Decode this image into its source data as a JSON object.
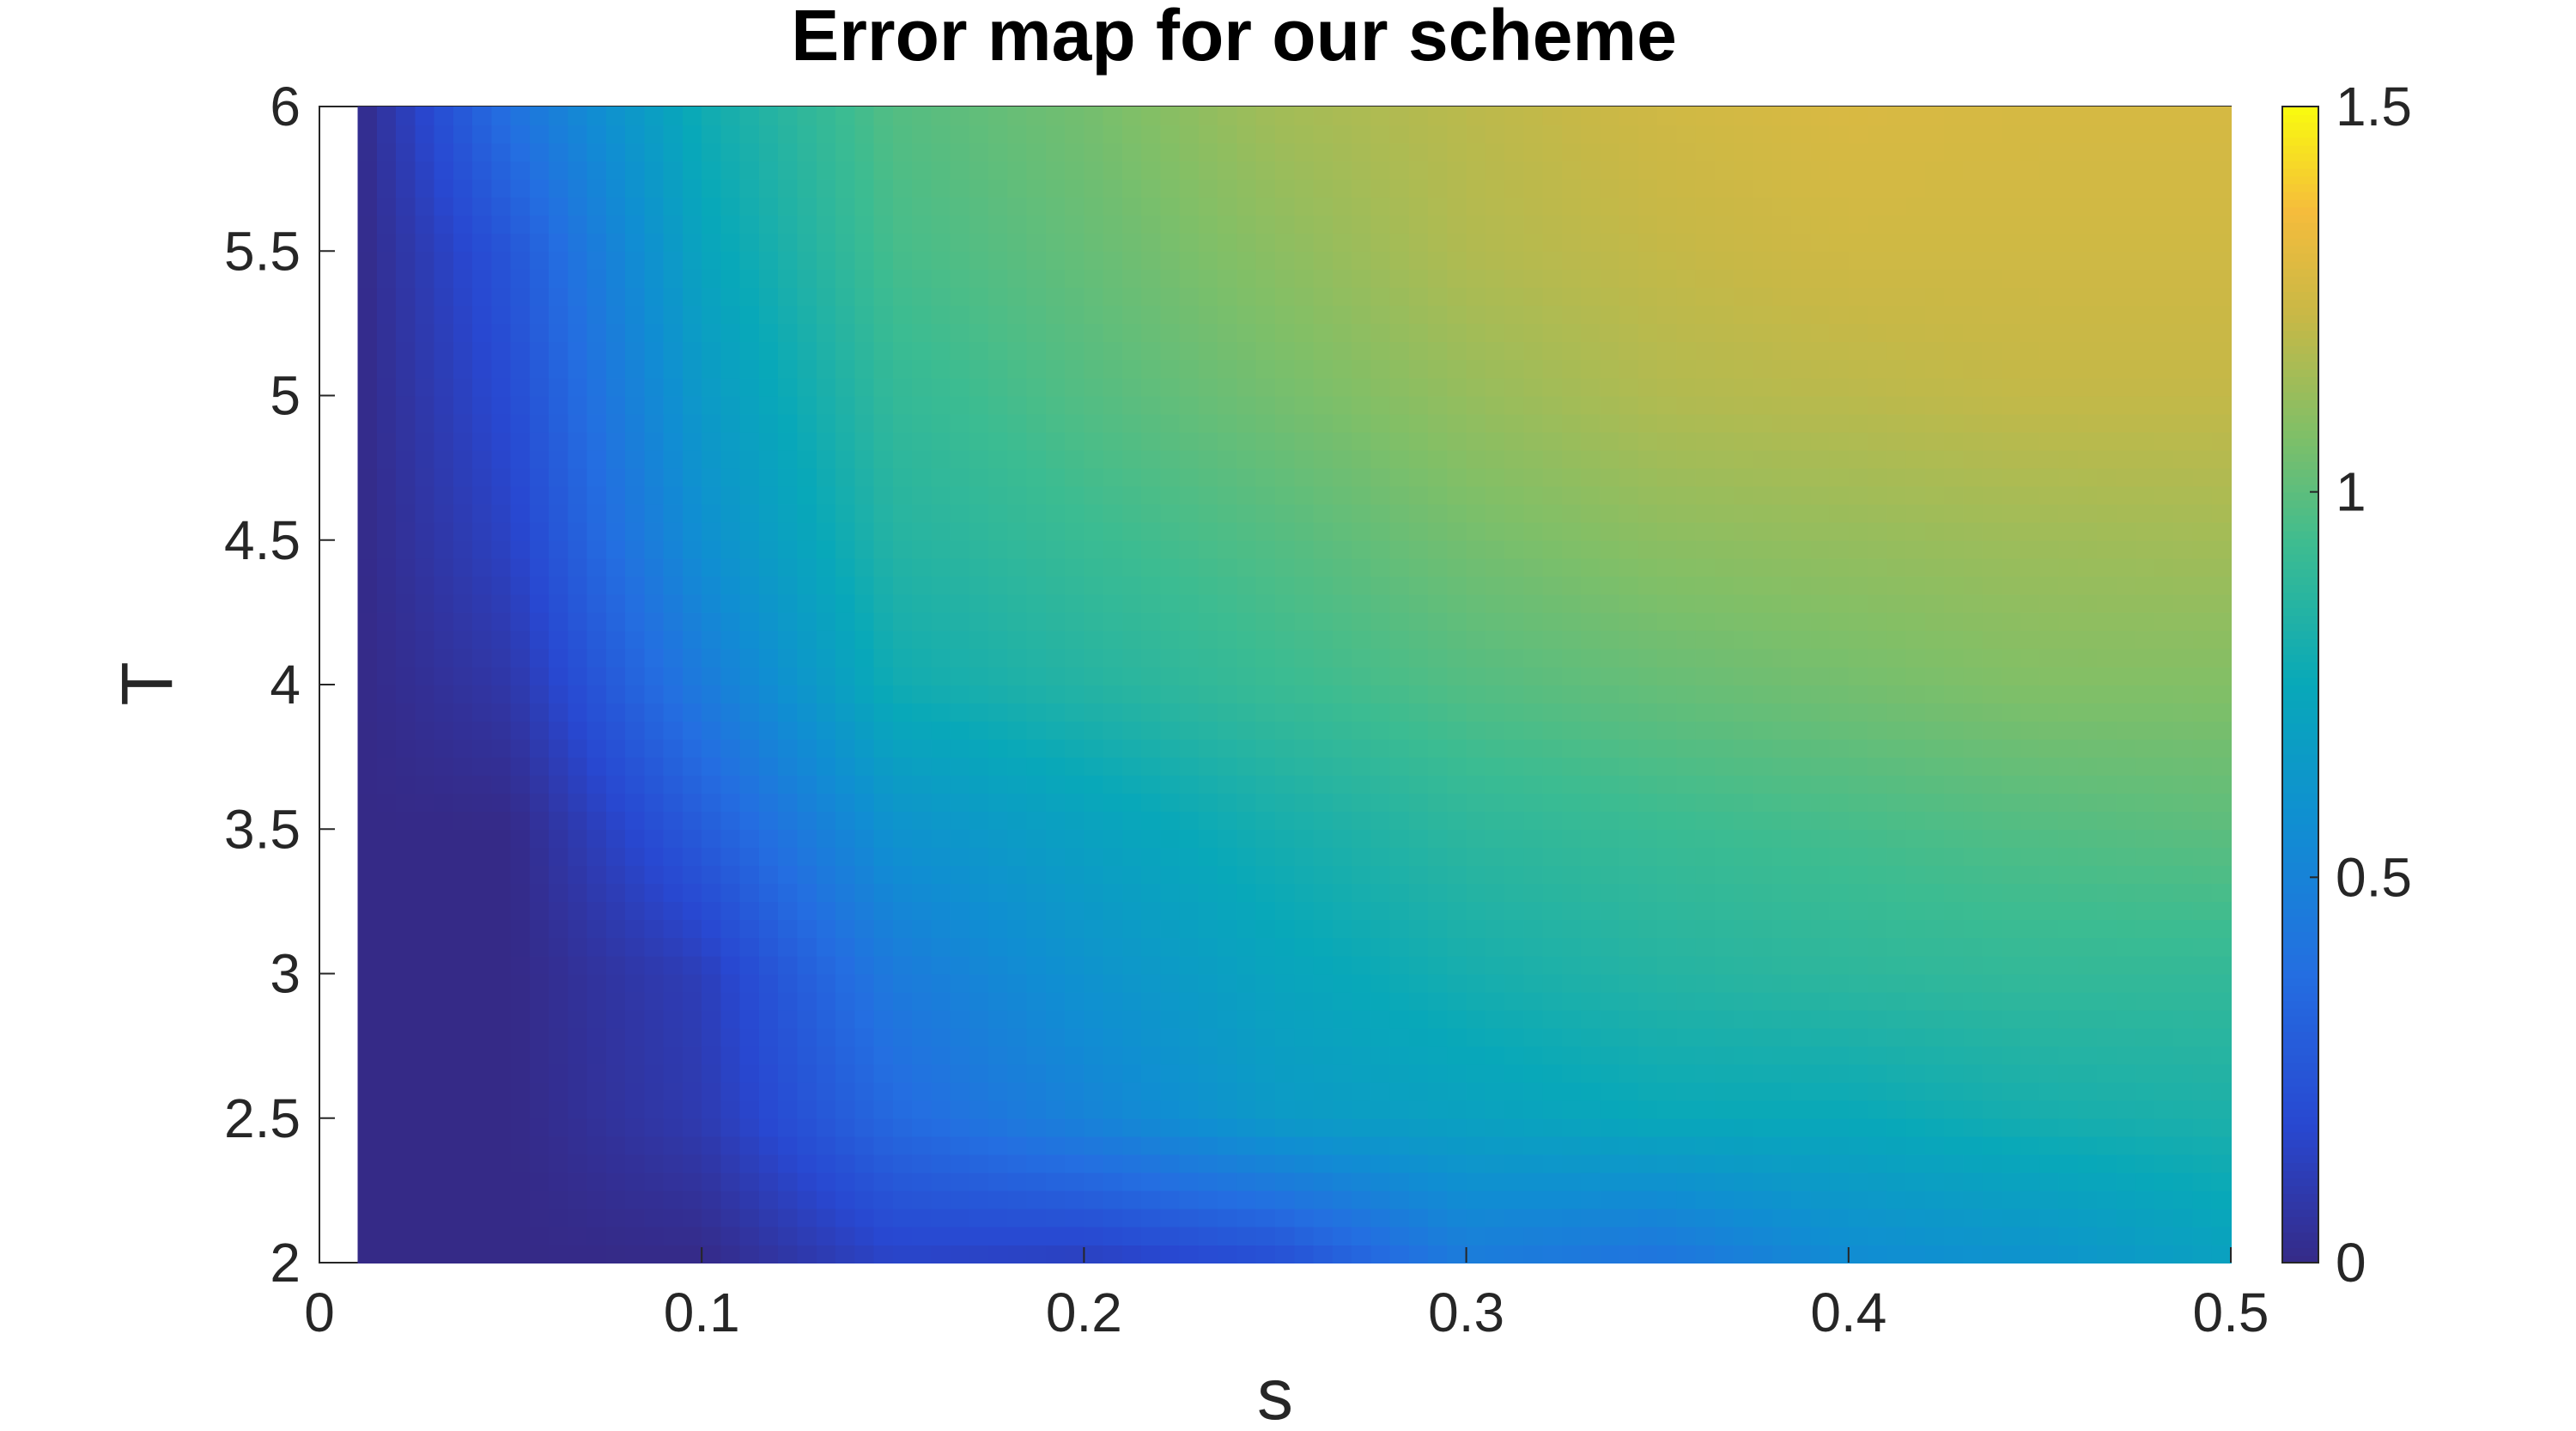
{
  "chart_data": {
    "type": "heatmap",
    "title": "Error map for our scheme",
    "xlabel": "s",
    "ylabel": "T",
    "xlim": [
      0,
      0.5
    ],
    "ylim": [
      2,
      6
    ],
    "x_ticks": [
      0,
      0.1,
      0.2,
      0.3,
      0.4,
      0.5
    ],
    "x_tick_labels": [
      "0",
      "0.1",
      "0.2",
      "0.3",
      "0.4",
      "0.5"
    ],
    "y_ticks": [
      2,
      2.5,
      3,
      3.5,
      4,
      4.5,
      5,
      5.5,
      6
    ],
    "y_tick_labels": [
      "2",
      "2.5",
      "3",
      "3.5",
      "4",
      "4.5",
      "5",
      "5.5",
      "6"
    ],
    "colorbar": {
      "colormap": "parula",
      "clim": [
        0,
        1.5
      ],
      "ticks": [
        0,
        0.5,
        1,
        1.5
      ],
      "tick_labels": [
        "0",
        "0.5",
        "1",
        "1.5"
      ]
    },
    "x": [
      0.01,
      0.05,
      0.1,
      0.15,
      0.2,
      0.25,
      0.3,
      0.35,
      0.4,
      0.45,
      0.5
    ],
    "y": [
      2,
      2.5,
      3,
      3.5,
      4,
      4.5,
      5,
      5.5,
      6
    ],
    "z": [
      [
        0.0,
        0.0,
        0.0,
        0.15,
        0.12,
        0.2,
        0.45,
        0.4,
        0.55,
        0.6,
        0.7
      ],
      [
        0.0,
        0.0,
        0.1,
        0.35,
        0.5,
        0.65,
        0.7,
        0.75,
        0.75,
        0.8,
        0.82
      ],
      [
        0.0,
        0.0,
        0.12,
        0.45,
        0.6,
        0.72,
        0.8,
        0.85,
        0.88,
        0.9,
        0.9
      ],
      [
        0.0,
        0.0,
        0.28,
        0.6,
        0.7,
        0.8,
        0.88,
        0.92,
        0.95,
        0.98,
        1.0
      ],
      [
        0.0,
        0.08,
        0.45,
        0.78,
        0.85,
        0.92,
        0.98,
        1.02,
        1.05,
        1.08,
        1.08
      ],
      [
        0.0,
        0.15,
        0.58,
        0.85,
        0.92,
        0.98,
        1.05,
        1.1,
        1.12,
        1.14,
        1.15
      ],
      [
        0.0,
        0.2,
        0.65,
        0.9,
        0.98,
        1.05,
        1.12,
        1.18,
        1.2,
        1.22,
        1.22
      ],
      [
        0.0,
        0.25,
        0.72,
        0.95,
        1.02,
        1.1,
        1.18,
        1.22,
        1.25,
        1.25,
        1.25
      ],
      [
        0.0,
        0.4,
        0.78,
        0.98,
        1.05,
        1.15,
        1.2,
        1.25,
        1.28,
        1.27,
        1.27
      ]
    ]
  }
}
